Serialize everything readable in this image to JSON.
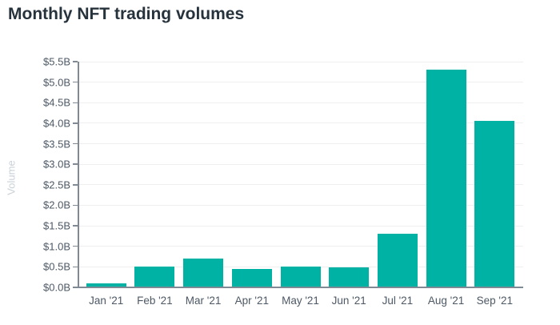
{
  "header": {
    "title": "Monthly NFT trading volumes"
  },
  "chart_data": {
    "type": "bar",
    "title": "Monthly NFT trading volumes",
    "categories": [
      "Jan '21",
      "Feb '21",
      "Mar '21",
      "Apr '21",
      "May '21",
      "Jun '21",
      "Jul '21",
      "Aug '21",
      "Sep '21"
    ],
    "values": [
      0.1,
      0.5,
      0.71,
      0.44,
      0.5,
      0.49,
      1.3,
      5.3,
      4.05
    ],
    "values_unit": "billion USD",
    "xlabel": "",
    "ylabel": "Volume",
    "ylim": [
      0,
      5.5
    ],
    "y_ticks": [
      0,
      0.5,
      1,
      1.5,
      2,
      2.5,
      3,
      3.5,
      4,
      4.5,
      5,
      5.5
    ],
    "y_tick_labels": [
      "$0.0B",
      "$0.5B",
      "$1.0B",
      "$1.5B",
      "$2.0B",
      "$2.5B",
      "$3.0B",
      "$3.5B",
      "$4.0B",
      "$4.5B",
      "$5.0B",
      "$5.5B"
    ],
    "grid": true,
    "legend_position": "none",
    "colors": {
      "bar": "#00b2a4",
      "title_text": "#26323c",
      "tick_text": "#4d5966",
      "axis_line": "#7f8a94",
      "gridline": "#efefef",
      "y_axis_title_text": "#c9d1d8",
      "background": "#ffffff"
    }
  }
}
